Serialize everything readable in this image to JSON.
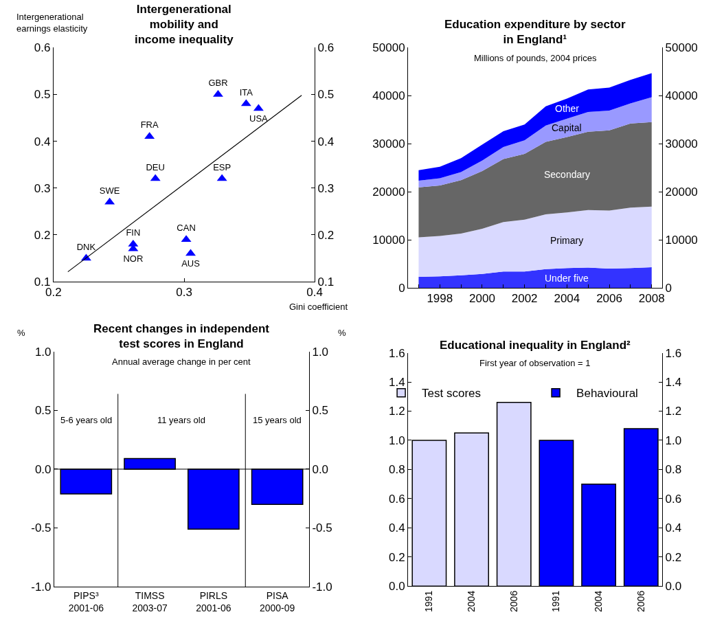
{
  "chart_data": [
    {
      "type": "scatter",
      "title": "Intergenerational\nmobility and\nincome inequality",
      "ylabel": "Intergenerational\nearnings elasticity",
      "xlabel": "Gini coefficient",
      "marker": "triangle",
      "legend": false,
      "grid": false,
      "series": [
        {
          "type": "scatter",
          "color": "#0000ff",
          "x": [
            0.326,
            0.3475,
            0.357,
            0.2735,
            0.278,
            0.329,
            0.243,
            0.261,
            0.261,
            0.3016,
            0.305,
            0.225
          ],
          "values": [
            0.5,
            0.48,
            0.47,
            0.41,
            0.32,
            0.32,
            0.27,
            0.18,
            0.17,
            0.19,
            0.16,
            0.15
          ],
          "value_labels": [
            "GBR",
            "ITA",
            "USA",
            "FRA",
            "DEU",
            "ESP",
            "SWE",
            "FIN",
            "NOR",
            "CAN",
            "AUS",
            "DNK"
          ]
        },
        {
          "type": "line",
          "color": "#000000",
          "marker": "none",
          "x": [
            0.211,
            0.39
          ],
          "values": [
            0.121,
            0.498
          ]
        }
      ],
      "xlim": [
        0.2,
        0.4
      ],
      "xticks": [
        0.2,
        0.3,
        0.4
      ],
      "ylim": [
        0.1,
        0.6
      ],
      "yticks": [
        0.1,
        0.2,
        0.3,
        0.4,
        0.5,
        0.6
      ],
      "y2lim": [
        0.1,
        0.6
      ],
      "y2ticks": [
        0.1,
        0.2,
        0.3,
        0.4,
        0.5,
        0.6
      ]
    },
    {
      "type": "area",
      "stacked": true,
      "title": "Education expenditure by sector\nin England¹",
      "subtitle": "Millions of pounds, 2004 prices",
      "legend": false,
      "grid": false,
      "x": [
        1997,
        1998,
        1999,
        2000,
        2001,
        2002,
        2003,
        2004,
        2005,
        2006,
        2007,
        2008
      ],
      "series": [
        {
          "name": "Under five",
          "color": "#3333ff",
          "values": [
            2300,
            2400,
            2600,
            2900,
            3400,
            3400,
            3900,
            4100,
            4200,
            4000,
            4100,
            4300
          ]
        },
        {
          "name": "Primary",
          "color": "#d9d9ff",
          "values": [
            8200,
            8400,
            8700,
            9400,
            10300,
            10800,
            11400,
            11600,
            12000,
            12100,
            12600,
            12600
          ]
        },
        {
          "name": "Secondary",
          "color": "#666666",
          "values": [
            10400,
            10500,
            11100,
            12000,
            13100,
            13700,
            15100,
            15700,
            16300,
            16700,
            17500,
            17600
          ]
        },
        {
          "name": "Capital",
          "color": "#9999ff",
          "values": [
            1400,
            1500,
            1700,
            2200,
            2500,
            2800,
            3400,
            3800,
            4100,
            4100,
            4200,
            5200
          ]
        },
        {
          "name": "Other",
          "color": "#0000ff",
          "values": [
            2200,
            2400,
            2900,
            3300,
            3300,
            3300,
            4000,
            4200,
            4700,
            4800,
            4900,
            5000
          ]
        }
      ],
      "xlim": [
        1996.5,
        2008.5
      ],
      "xticks": [
        {
          "value": 1997,
          "label": null
        },
        1998,
        {
          "value": 1999,
          "label": null
        },
        2000,
        {
          "value": 2001,
          "label": null
        },
        2002,
        {
          "value": 2003,
          "label": null
        },
        2004,
        {
          "value": 2005,
          "label": null
        },
        2006,
        {
          "value": 2007,
          "label": null
        },
        2008
      ],
      "ylim": [
        0,
        50000
      ],
      "yticks": [
        0,
        10000,
        20000,
        30000,
        40000,
        50000
      ],
      "y2lim": [
        0,
        50000
      ],
      "y2ticks": [
        0,
        10000,
        20000,
        30000,
        40000,
        50000
      ]
    },
    {
      "type": "bar",
      "title": "Recent changes in independent\ntest scores in England",
      "subtitle": "Annual average change in per cent",
      "ylabel": "%",
      "y2label": "%",
      "legend": false,
      "grid": false,
      "categories": [
        "PIPS³\n2001-06",
        "TIMSS\n2003-07",
        "PIRLS\n2001-06",
        "PISA\n2000-09"
      ],
      "series": [
        {
          "color": "#0000ff",
          "values": [
            -0.21,
            0.09,
            -0.51,
            -0.3
          ]
        }
      ],
      "annotations": [
        "5-6 years old",
        "11 years old",
        "15 years old"
      ],
      "ref_lines": [
        {
          "axis": "y",
          "value": 0,
          "color": "#000000"
        }
      ],
      "ylim": [
        -1,
        1
      ],
      "yticks": [
        {
          "value": -1,
          "label": "-1.0"
        },
        {
          "value": -0.5,
          "label": "-0.5"
        },
        {
          "value": 0,
          "label": "0.0"
        },
        {
          "value": 0.5,
          "label": "0.5"
        },
        {
          "value": 1,
          "label": "1.0"
        }
      ],
      "y2lim": [
        -1,
        1
      ],
      "y2ticks": [
        {
          "value": -1,
          "label": "-1.0"
        },
        {
          "value": -0.5,
          "label": "-0.5"
        },
        {
          "value": 0,
          "label": "0.0"
        },
        {
          "value": 0.5,
          "label": "0.5"
        },
        {
          "value": 1,
          "label": "1.0"
        }
      ]
    },
    {
      "type": "bar",
      "title": "Educational inequality in England²",
      "subtitle": "First year of observation = 1",
      "legend": "top",
      "grid": false,
      "categories": [
        "1991",
        "2004",
        "2006",
        "1991",
        "2004",
        "2006"
      ],
      "series": [
        {
          "name": "Test scores",
          "color": "#d9d9ff",
          "values": [
            1.0,
            1.05,
            1.26,
            null,
            null,
            null
          ]
        },
        {
          "name": "Behavioural",
          "color": "#0000ff",
          "values": [
            null,
            null,
            null,
            1.0,
            0.7,
            1.08
          ]
        }
      ],
      "ylim": [
        0,
        1.6
      ],
      "yticks": [
        {
          "value": 0,
          "label": "0.0"
        },
        0.2,
        0.4,
        0.6,
        0.8,
        {
          "value": 1,
          "label": "1.0"
        },
        1.2,
        1.4,
        1.6
      ],
      "y2lim": [
        0,
        1.6
      ],
      "y2ticks": [
        {
          "value": 0,
          "label": "0.0"
        },
        0.2,
        0.4,
        0.6,
        0.8,
        {
          "value": 1,
          "label": "1.0"
        },
        1.2,
        1.4,
        1.6
      ]
    }
  ]
}
